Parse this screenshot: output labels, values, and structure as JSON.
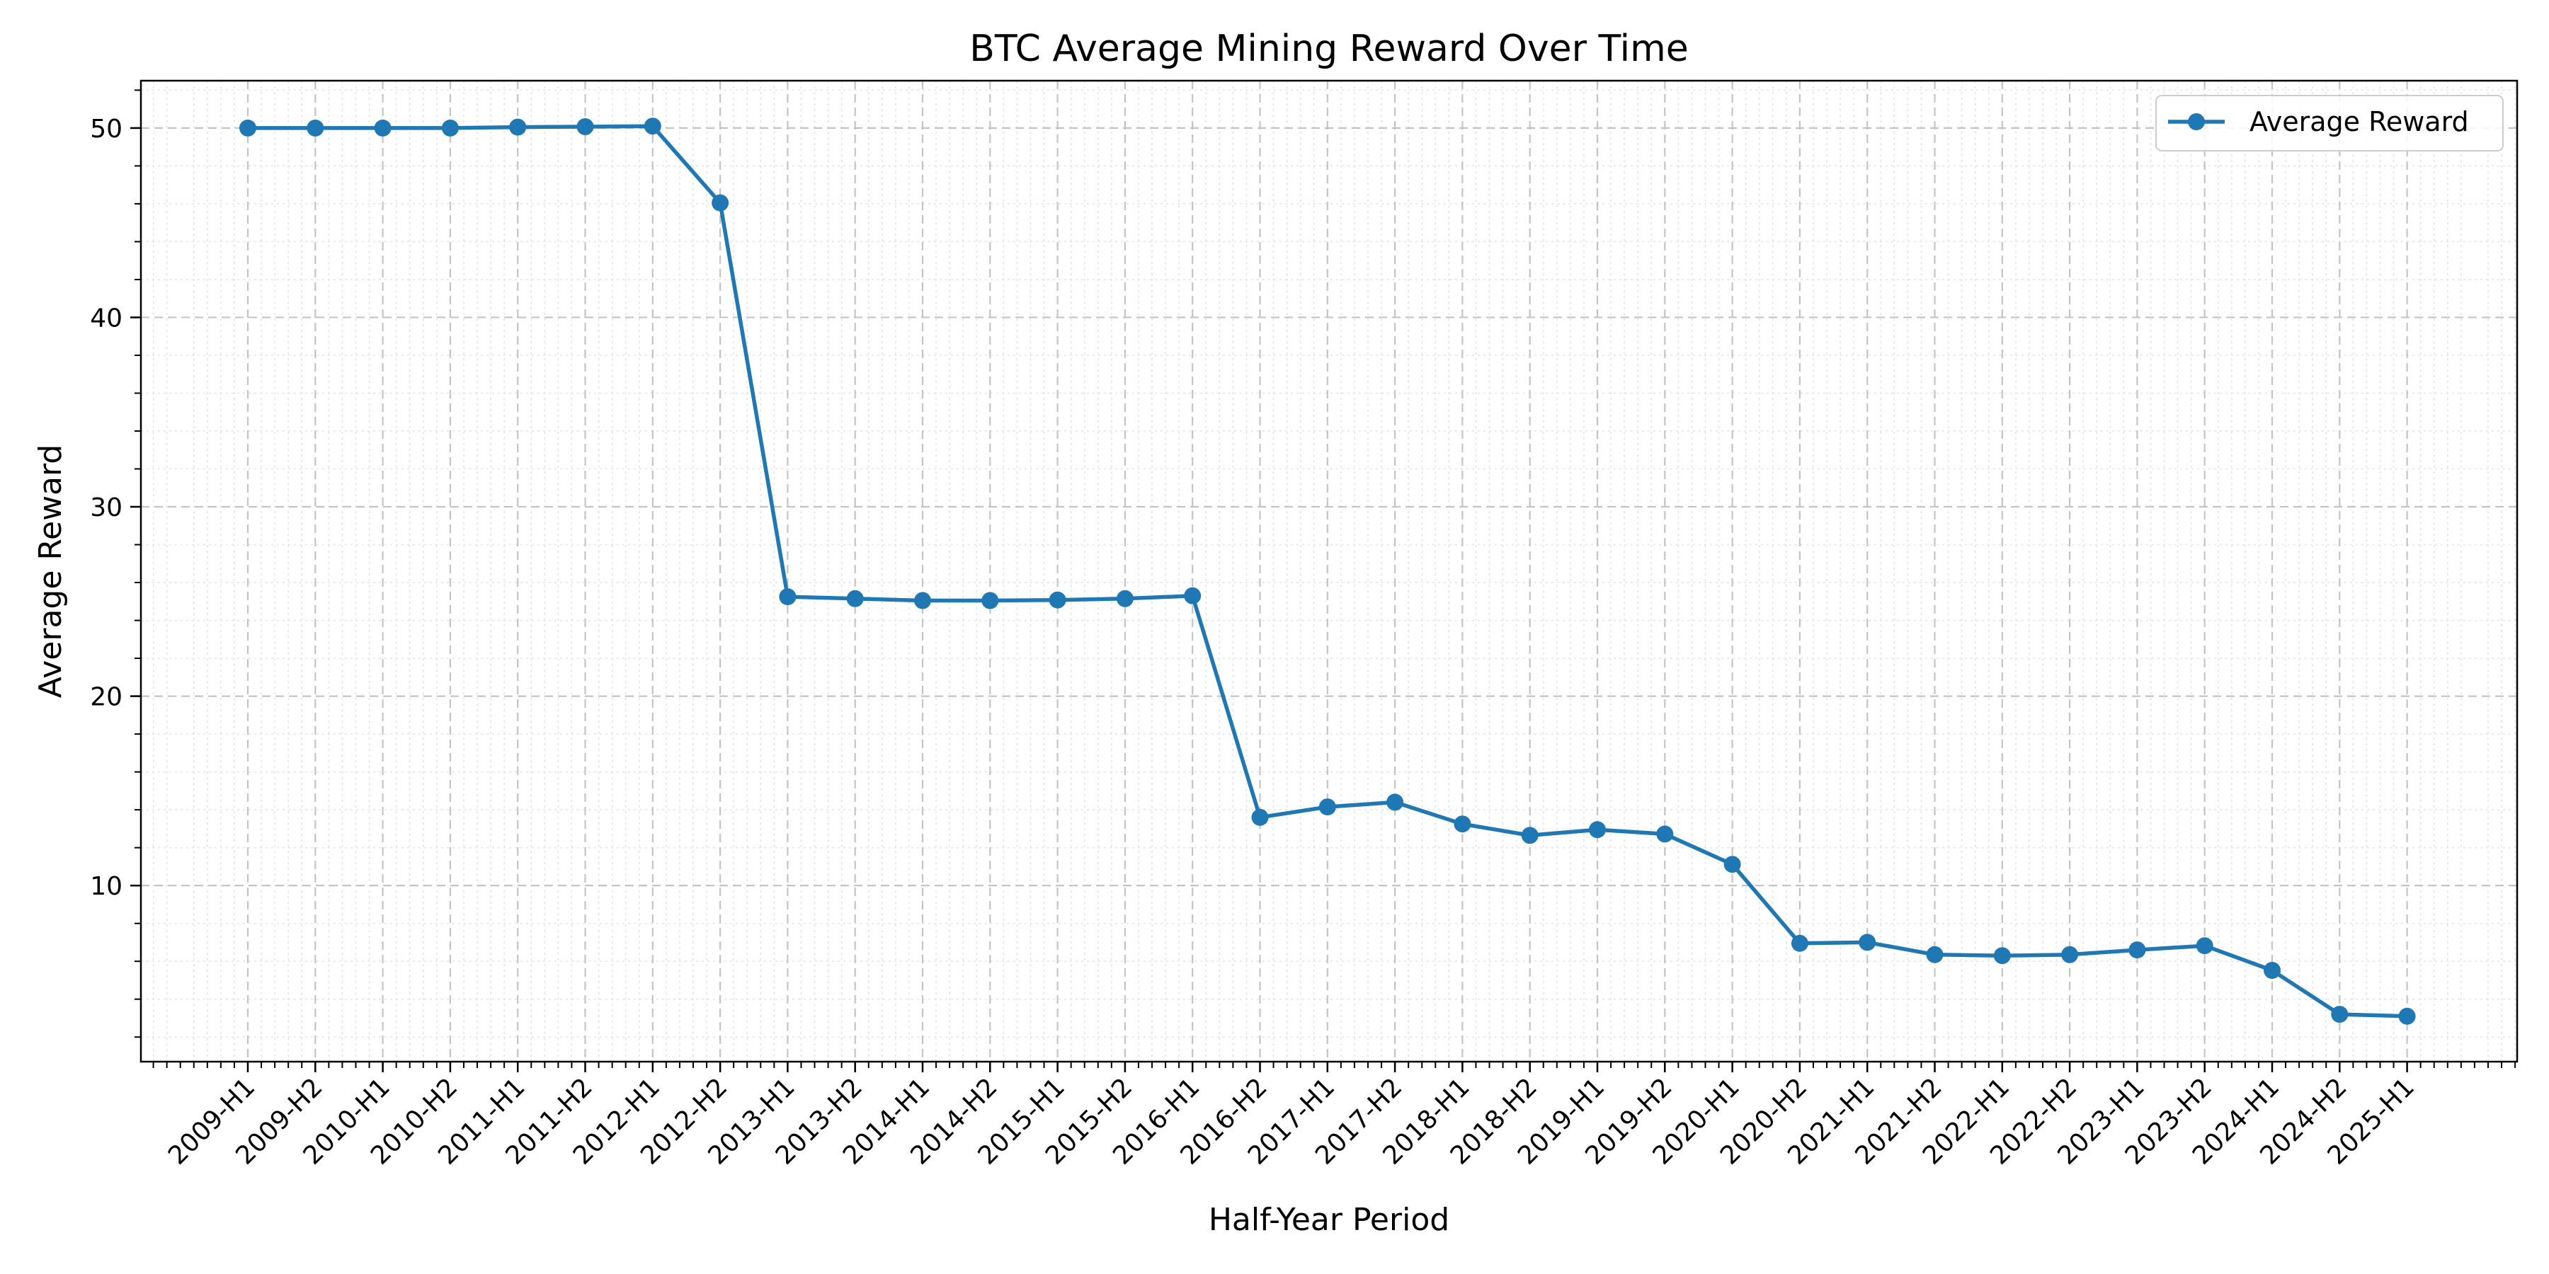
{
  "chart_data": {
    "type": "line",
    "title": "BTC Average Mining Reward Over Time",
    "xlabel": "Half-Year Period",
    "ylabel": "Average Reward",
    "categories": [
      "2009-H1",
      "2009-H2",
      "2010-H1",
      "2010-H2",
      "2011-H1",
      "2011-H2",
      "2012-H1",
      "2012-H2",
      "2013-H1",
      "2013-H2",
      "2014-H1",
      "2014-H2",
      "2015-H1",
      "2015-H2",
      "2016-H1",
      "2016-H2",
      "2017-H1",
      "2017-H2",
      "2018-H1",
      "2018-H2",
      "2019-H1",
      "2019-H2",
      "2020-H1",
      "2020-H2",
      "2021-H1",
      "2021-H2",
      "2022-H1",
      "2022-H2",
      "2023-H1",
      "2023-H2",
      "2024-H1",
      "2024-H2",
      "2025-H1"
    ],
    "series": [
      {
        "name": "Average Reward",
        "color": "#1f77b4",
        "values": [
          50.0,
          50.0,
          50.0,
          50.0,
          50.05,
          50.07,
          50.1,
          46.05,
          25.25,
          25.15,
          25.05,
          25.05,
          25.08,
          25.15,
          25.3,
          13.6,
          14.15,
          14.4,
          13.25,
          12.65,
          12.95,
          12.72,
          11.12,
          6.95,
          7.0,
          6.35,
          6.3,
          6.35,
          6.6,
          6.82,
          5.52,
          3.2,
          3.1
        ]
      }
    ],
    "yticks": [
      10,
      20,
      30,
      40,
      50
    ],
    "ylim": [
      0.7,
      52.5
    ],
    "grid": true,
    "legend": "top-right"
  }
}
